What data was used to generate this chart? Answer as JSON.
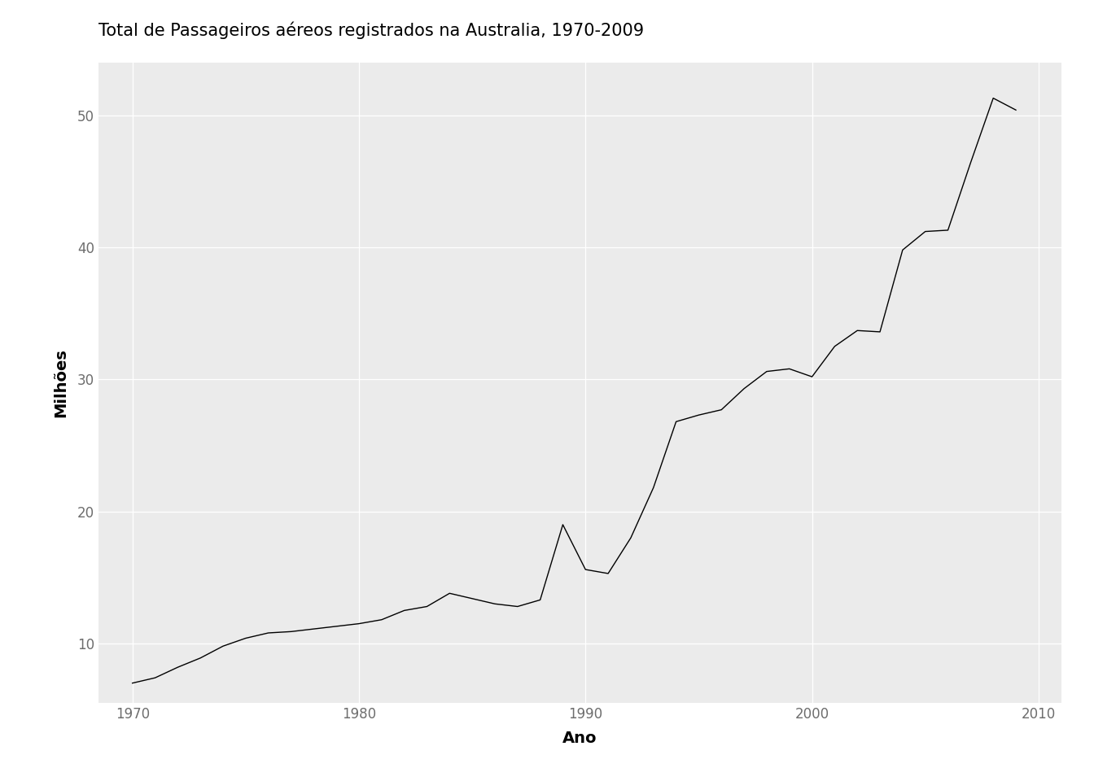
{
  "title": "Total de Passageiros aéreos registrados na Australia, 1970-2009",
  "xlabel": "Ano",
  "ylabel": "Milhões",
  "line_color": "#000000",
  "background_color": "#EBEBEB",
  "figure_background": "#FFFFFF",
  "grid_color": "#FFFFFF",
  "tick_label_color": "#6D6D6D",
  "years": [
    1970,
    1971,
    1972,
    1973,
    1974,
    1975,
    1976,
    1977,
    1978,
    1979,
    1980,
    1981,
    1982,
    1983,
    1984,
    1985,
    1986,
    1987,
    1988,
    1989,
    1990,
    1991,
    1992,
    1993,
    1994,
    1995,
    1996,
    1997,
    1998,
    1999,
    2000,
    2001,
    2002,
    2003,
    2004,
    2005,
    2006,
    2007,
    2008,
    2009
  ],
  "values": [
    7.0,
    7.4,
    8.2,
    8.9,
    9.8,
    10.4,
    10.8,
    10.9,
    11.1,
    11.3,
    11.5,
    11.8,
    12.5,
    12.8,
    13.8,
    13.4,
    13.0,
    12.8,
    13.3,
    19.0,
    15.6,
    15.3,
    18.0,
    21.8,
    26.8,
    27.3,
    27.7,
    29.3,
    30.6,
    30.8,
    30.2,
    32.5,
    33.7,
    33.6,
    39.8,
    41.2,
    41.3,
    46.4,
    51.3,
    50.4
  ],
  "xlim": [
    1968.5,
    2011.0
  ],
  "ylim": [
    5.5,
    54.0
  ],
  "yticks": [
    10,
    20,
    30,
    40,
    50
  ],
  "xticks": [
    1970,
    1980,
    1990,
    2000,
    2010
  ],
  "title_fontsize": 15,
  "axis_label_fontsize": 14,
  "tick_fontsize": 12,
  "line_width": 1.0
}
